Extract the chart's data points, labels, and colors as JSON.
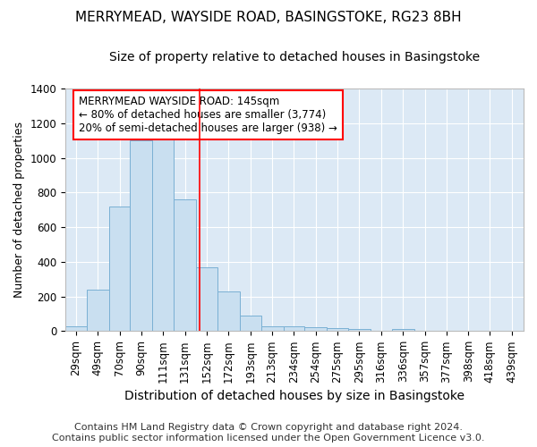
{
  "title1": "MERRYMEAD, WAYSIDE ROAD, BASINGSTOKE, RG23 8BH",
  "title2": "Size of property relative to detached houses in Basingstoke",
  "xlabel": "Distribution of detached houses by size in Basingstoke",
  "ylabel": "Number of detached properties",
  "footer1": "Contains HM Land Registry data © Crown copyright and database right 2024.",
  "footer2": "Contains public sector information licensed under the Open Government Licence v3.0.",
  "annotation_line1": "MERRYMEAD WAYSIDE ROAD: 145sqm",
  "annotation_line2": "← 80% of detached houses are smaller (3,774)",
  "annotation_line3": "20% of semi-detached houses are larger (938) →",
  "bar_color": "#c9dff0",
  "bar_edge_color": "#7ab0d4",
  "red_line_x": 145,
  "categories": [
    "29sqm",
    "49sqm",
    "70sqm",
    "90sqm",
    "111sqm",
    "131sqm",
    "152sqm",
    "172sqm",
    "193sqm",
    "213sqm",
    "234sqm",
    "254sqm",
    "275sqm",
    "295sqm",
    "316sqm",
    "336sqm",
    "357sqm",
    "377sqm",
    "398sqm",
    "418sqm",
    "439sqm"
  ],
  "bin_edges": [
    19,
    39,
    60,
    80,
    101,
    121,
    142,
    162,
    183,
    203,
    224,
    244,
    265,
    285,
    306,
    326,
    347,
    367,
    388,
    408,
    428,
    450
  ],
  "values": [
    25,
    240,
    720,
    1100,
    1120,
    760,
    370,
    230,
    90,
    30,
    30,
    20,
    15,
    10,
    0,
    10,
    0,
    0,
    0,
    0,
    0
  ],
  "ylim": [
    0,
    1400
  ],
  "yticks": [
    0,
    200,
    400,
    600,
    800,
    1000,
    1200,
    1400
  ],
  "fig_background": "#ffffff",
  "plot_background": "#dce9f5",
  "grid_color": "#ffffff",
  "title1_fontsize": 11,
  "title2_fontsize": 10,
  "xlabel_fontsize": 10,
  "ylabel_fontsize": 9,
  "tick_fontsize": 8.5,
  "footer_fontsize": 8
}
